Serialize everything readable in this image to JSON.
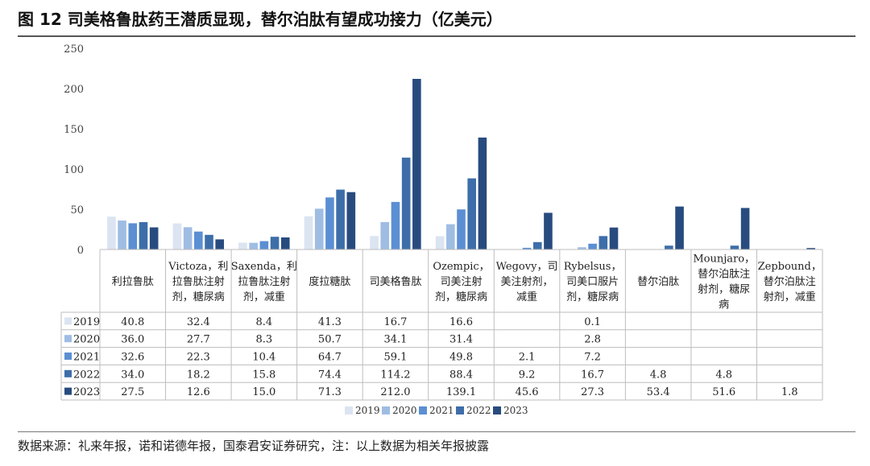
{
  "title": "图 12 司美格鲁肽药王潜质显现，替尔泊肽有望成功接力（亿美元）",
  "source": "数据来源：礼来年报，诺和诺德年报，国泰君安证券研究，注：以上数据为相关年报披露",
  "colors": {
    "2019": "#dbe4f1",
    "2020": "#9fbde3",
    "2021": "#5b8fd3",
    "2022": "#3d6ea9",
    "2023": "#284b7f"
  },
  "chart_data": {
    "type": "bar",
    "categories": [
      [
        "利拉鲁肽"
      ],
      [
        "Victoza，利",
        "拉鲁肽注射",
        "剂，糖尿病"
      ],
      [
        "Saxenda，利",
        "拉鲁肽注射",
        "剂，减重"
      ],
      [
        "度拉糖肽"
      ],
      [
        "司美格鲁肽"
      ],
      [
        "Ozempic，",
        "司美注射",
        "剂，糖尿病"
      ],
      [
        "Wegovy，司",
        "美注射剂，",
        "减重"
      ],
      [
        "Rybelsus，",
        "司美口服片",
        "剂，糖尿病"
      ],
      [
        "替尔泊肽"
      ],
      [
        "Mounjaro，",
        "替尔泊肽注",
        "射剂，糖尿",
        "病"
      ],
      [
        "Zepbound，",
        "替尔泊肽注",
        "射剂，减重"
      ]
    ],
    "series": [
      {
        "name": "2019",
        "values": [
          "40.8",
          "32.4",
          "8.4",
          "41.3",
          "16.7",
          "16.6",
          "",
          "0.1",
          "",
          "",
          ""
        ]
      },
      {
        "name": "2020",
        "values": [
          "36.0",
          "27.7",
          "8.3",
          "50.7",
          "34.1",
          "31.4",
          "",
          "2.8",
          "",
          "",
          ""
        ]
      },
      {
        "name": "2021",
        "values": [
          "32.6",
          "22.3",
          "10.4",
          "64.7",
          "59.1",
          "49.8",
          "2.1",
          "7.2",
          "",
          "",
          ""
        ]
      },
      {
        "name": "2022",
        "values": [
          "34.0",
          "18.2",
          "15.8",
          "74.4",
          "114.2",
          "88.4",
          "9.2",
          "16.7",
          "4.8",
          "4.8",
          ""
        ]
      },
      {
        "name": "2023",
        "values": [
          "27.5",
          "12.6",
          "15.0",
          "71.3",
          "212.0",
          "139.1",
          "45.6",
          "27.3",
          "53.4",
          "51.6",
          "1.8"
        ]
      }
    ],
    "ylim": [
      0,
      250
    ],
    "yticks": [
      "0",
      "50",
      "100",
      "150",
      "200",
      "250"
    ],
    "legend_position": "bottom-center",
    "grid": false
  }
}
